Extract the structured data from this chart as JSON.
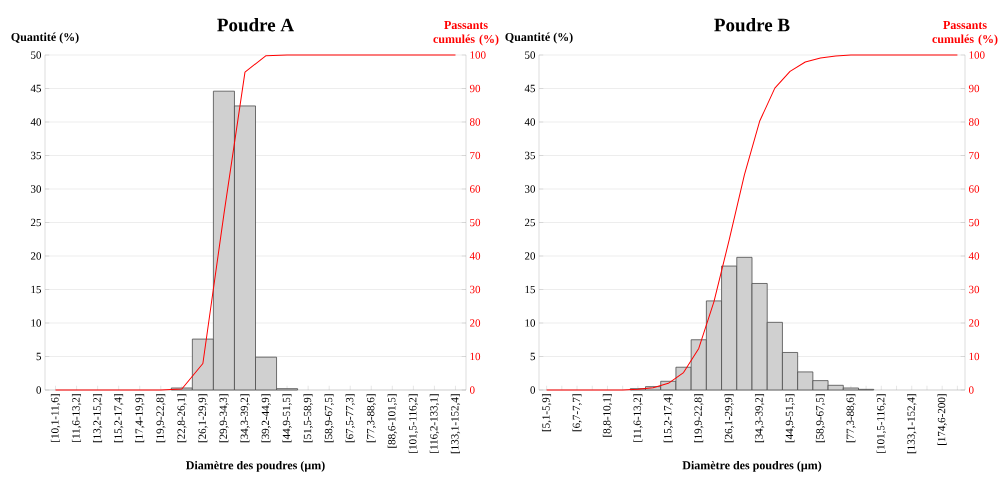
{
  "chart_data": [
    {
      "type": "bar",
      "title": "Poudre A",
      "xlabel": "Diamètre des poudres (µm)",
      "ylabel": "Quantité (%)",
      "y2label": "Passants cumulés (%)",
      "categories": [
        "[10,1-11,6]",
        "[11,6-13,2]",
        "[13,2-15,2]",
        "[15,2-17,4]",
        "[17,4-19,9]",
        "[19,9-22,8]",
        "[22,8-26,1]",
        "[26,1-29,9]",
        "[29,9-34,3]",
        "[34,3-39,2]",
        "[39,2-44,9]",
        "[44,9-51,5]",
        "[51,5-58,9]",
        "[58,9-67,5]",
        "[67,5-77,3]",
        "[77,3-88,6]",
        "[88,6-101,5]",
        "[101,5-116,2]",
        "[116,2-133,1]",
        "[133,1-152,4]"
      ],
      "series": [
        {
          "type": "bar",
          "color": "#d0d0d0",
          "values": [
            null,
            null,
            null,
            null,
            null,
            null,
            0.3,
            7.6,
            44.6,
            42.4,
            4.9,
            0.2,
            null,
            null,
            null,
            null,
            null,
            null,
            null,
            null
          ]
        },
        {
          "type": "line",
          "axis": "y2",
          "color": "#ff0000",
          "values": [
            0,
            0,
            0,
            0,
            0,
            0,
            0.3,
            7.9,
            52.5,
            94.9,
            99.8,
            100,
            100,
            100,
            100,
            100,
            100,
            100,
            100,
            100
          ]
        }
      ],
      "ylim": [
        0,
        50
      ],
      "yticks": [
        0,
        5,
        10,
        15,
        20,
        25,
        30,
        35,
        40,
        45,
        50
      ],
      "y2lim": [
        0,
        100
      ],
      "y2ticks": [
        0,
        10,
        20,
        30,
        40,
        50,
        60,
        70,
        80,
        90,
        100
      ],
      "grid": "y"
    },
    {
      "type": "bar",
      "title": "Poudre B",
      "xlabel": "Diamètre des poudres (µm)",
      "ylabel": "Quantité (%)",
      "y2label": "Passants cumulés (%)",
      "categories": [
        "[5,1-5,9]",
        null,
        "[6,7-7,7]",
        null,
        "[8,8-10,1]",
        null,
        "[11,6-13,2]",
        null,
        "[15,2-17,4]",
        null,
        "[19,9-22,8]",
        null,
        "[26,1-29,9]",
        null,
        "[34,3-39,2]",
        null,
        "[44,9-51,5]",
        null,
        "[58,9-67,5]",
        null,
        "[77,3-88,6]",
        null,
        "[101,5-116,2]",
        null,
        "[133,1-152,4]",
        null,
        "[174,6-200]",
        null
      ],
      "series": [
        {
          "type": "bar",
          "color": "#d0d0d0",
          "values": [
            null,
            null,
            null,
            null,
            null,
            null,
            0.2,
            0.5,
            1.3,
            3.4,
            7.5,
            13.3,
            18.5,
            19.8,
            15.9,
            10.1,
            5.6,
            2.7,
            1.4,
            0.7,
            0.3,
            0.1,
            null,
            null,
            null,
            null,
            null,
            null
          ]
        },
        {
          "type": "line",
          "axis": "y2",
          "color": "#ff0000",
          "values": [
            0,
            0,
            0,
            0,
            0,
            0,
            0.2,
            0.7,
            2.0,
            5.2,
            12.4,
            26.4,
            44.8,
            64.2,
            80.2,
            90.1,
            95.1,
            97.9,
            99.1,
            99.7,
            100,
            100,
            100,
            100,
            100,
            100,
            100,
            100
          ]
        }
      ],
      "ylim": [
        0,
        50
      ],
      "yticks": [
        0,
        5,
        10,
        15,
        20,
        25,
        30,
        35,
        40,
        45,
        50
      ],
      "y2lim": [
        0,
        100
      ],
      "y2ticks": [
        0,
        10,
        20,
        30,
        40,
        50,
        60,
        70,
        80,
        90,
        100
      ],
      "grid": "y"
    }
  ]
}
